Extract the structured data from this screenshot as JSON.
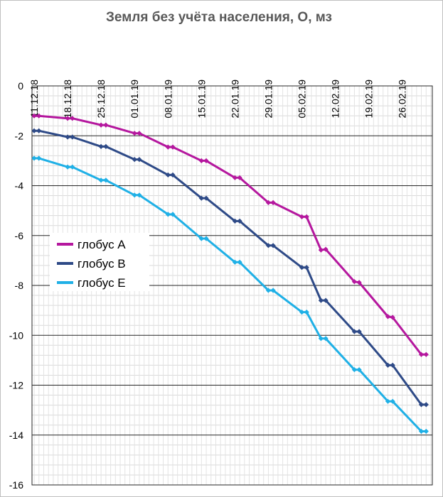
{
  "chart_data": {
    "type": "line",
    "title": "Земля без учёта населения, О, мз",
    "xlabel": "",
    "ylabel": "",
    "ylim": [
      -16,
      0
    ],
    "y_major_step": 2,
    "y_minor_step": 0.4,
    "grid": true,
    "legend_position": "left-middle",
    "x_tick_labels": [
      "11.12.18",
      "18.12.18",
      "25.12.18",
      "01.01.19",
      "08.01.19",
      "15.01.19",
      "22.01.19",
      "29.01.19",
      "05.02.19",
      "12.02.19",
      "19.02.19",
      "26.02.19"
    ],
    "x_day_index": [
      0,
      1,
      7,
      8,
      14,
      15,
      21,
      22,
      28,
      29,
      35,
      36,
      42,
      43,
      49,
      50,
      56,
      57,
      60,
      61,
      67,
      68,
      74,
      75,
      81,
      82
    ],
    "series": [
      {
        "name": "глобус A",
        "color": "#b5179e",
        "values": [
          -1.2,
          -1.2,
          -1.3,
          -1.3,
          -1.57,
          -1.57,
          -1.9,
          -1.9,
          -2.45,
          -2.45,
          -3.0,
          -3.0,
          -3.68,
          -3.68,
          -4.68,
          -4.68,
          -5.25,
          -5.25,
          -6.58,
          -6.55,
          -7.85,
          -7.88,
          -9.25,
          -9.28,
          -10.77,
          -10.77
        ]
      },
      {
        "name": "глобус B",
        "color": "#2e4a87",
        "values": [
          -1.8,
          -1.8,
          -2.05,
          -2.05,
          -2.43,
          -2.43,
          -2.95,
          -2.95,
          -3.57,
          -3.57,
          -4.5,
          -4.5,
          -5.42,
          -5.42,
          -6.4,
          -6.4,
          -7.28,
          -7.28,
          -8.6,
          -8.6,
          -9.85,
          -9.85,
          -11.2,
          -11.2,
          -12.78,
          -12.78
        ]
      },
      {
        "name": "глобус E",
        "color": "#1fb0e6",
        "values": [
          -2.9,
          -2.9,
          -3.25,
          -3.25,
          -3.78,
          -3.78,
          -4.38,
          -4.38,
          -5.15,
          -5.15,
          -6.12,
          -6.12,
          -7.07,
          -7.07,
          -8.2,
          -8.2,
          -9.07,
          -9.07,
          -10.13,
          -10.13,
          -11.38,
          -11.38,
          -12.65,
          -12.65,
          -13.85,
          -13.85
        ]
      }
    ]
  }
}
